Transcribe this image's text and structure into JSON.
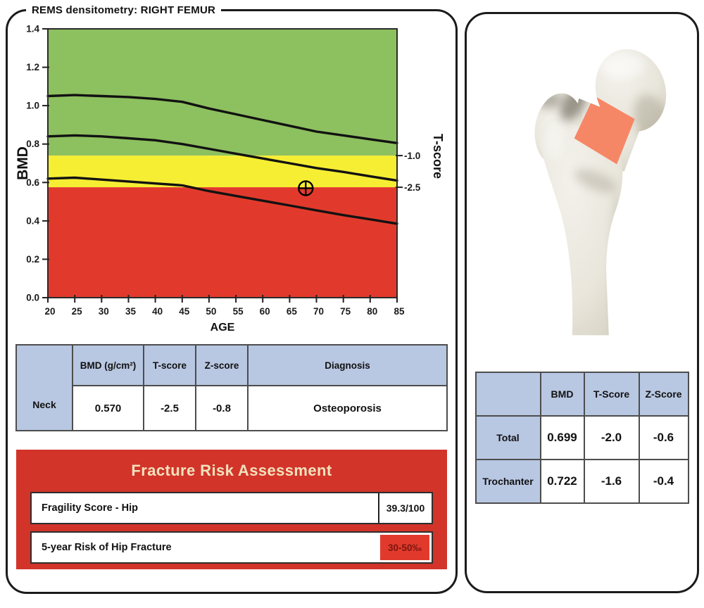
{
  "colors": {
    "zone_normal_green": "#8dc05f",
    "zone_osteopenia_yellow": "#f6ee33",
    "zone_osteoporosis_red": "#e13a2c",
    "table_header_blue": "#b8c7e2",
    "risk_panel_red": "#d2342a",
    "risk_title_text": "#f2e2bd",
    "risk_value_text_dark_red": "#7c150e",
    "neck_highlight_orange": "#f68766",
    "curve_black": "#121212"
  },
  "chart_data": {
    "type": "line",
    "title": "",
    "xlabel": "AGE",
    "ylabel": "BMD",
    "y2label": "T-score",
    "xlim": [
      20,
      85
    ],
    "ylim": [
      0,
      1.4
    ],
    "x_ticks": [
      20,
      25,
      30,
      35,
      40,
      45,
      50,
      55,
      60,
      65,
      70,
      75,
      80,
      85
    ],
    "y_ticks": [
      0,
      0.2,
      0.4,
      0.6,
      0.8,
      1.0,
      1.2,
      1.4
    ],
    "grid": false,
    "zones": [
      {
        "label": "normal",
        "bmd_from": 0.74,
        "bmd_to": 1.4,
        "color": "#8dc05f"
      },
      {
        "label": "osteopenia",
        "bmd_from": 0.575,
        "bmd_to": 0.74,
        "color": "#f6ee33"
      },
      {
        "label": "osteoporosis",
        "bmd_from": 0,
        "bmd_to": 0.575,
        "color": "#e13a2c"
      }
    ],
    "t_score_axis": [
      {
        "label": "-1.0",
        "bmd": 0.74
      },
      {
        "label": "-2.5",
        "bmd": 0.575
      }
    ],
    "x": [
      20,
      25,
      30,
      35,
      40,
      45,
      50,
      55,
      60,
      65,
      70,
      75,
      80,
      85
    ],
    "series": [
      {
        "name": "reference upper",
        "values": [
          1.05,
          1.055,
          1.05,
          1.045,
          1.035,
          1.02,
          0.985,
          0.955,
          0.925,
          0.895,
          0.865,
          0.845,
          0.825,
          0.805
        ]
      },
      {
        "name": "reference mean",
        "values": [
          0.84,
          0.845,
          0.84,
          0.83,
          0.82,
          0.8,
          0.775,
          0.75,
          0.725,
          0.7,
          0.675,
          0.655,
          0.632,
          0.61
        ]
      },
      {
        "name": "reference lower",
        "values": [
          0.62,
          0.625,
          0.615,
          0.605,
          0.595,
          0.585,
          0.555,
          0.53,
          0.505,
          0.48,
          0.455,
          0.43,
          0.408,
          0.385
        ]
      }
    ],
    "patient_point": {
      "age": 68,
      "bmd": 0.57,
      "marker": "crosshair-circle"
    }
  },
  "left_panel": {
    "title": "REMS densitometry: RIGHT FEMUR",
    "results_table": {
      "headers": {
        "bmd": "BMD (g/cm²)",
        "t_score": "T-score",
        "z_score": "Z-score",
        "diagnosis": "Diagnosis"
      },
      "row": {
        "label": "Neck",
        "bmd": "0.570",
        "t_score": "-2.5",
        "z_score": "-0.8",
        "diagnosis": "Osteoporosis"
      }
    },
    "fracture_risk": {
      "title": "Fracture Risk Assessment",
      "rows": [
        {
          "label": "Fragility Score - Hip",
          "value": "39.3/100"
        },
        {
          "label": "5-year Risk of Hip Fracture",
          "value": "30-50‰"
        }
      ]
    }
  },
  "right_panel": {
    "regions_table": {
      "headers": {
        "bmd": "BMD",
        "t_score": "T-Score",
        "z_score": "Z-Score"
      },
      "rows": [
        {
          "label": "Total",
          "bmd": "0.699",
          "t_score": "-2.0",
          "z_score": "-0.6"
        },
        {
          "label": "Trochanter",
          "bmd": "0.722",
          "t_score": "-1.6",
          "z_score": "-0.4"
        }
      ]
    }
  }
}
